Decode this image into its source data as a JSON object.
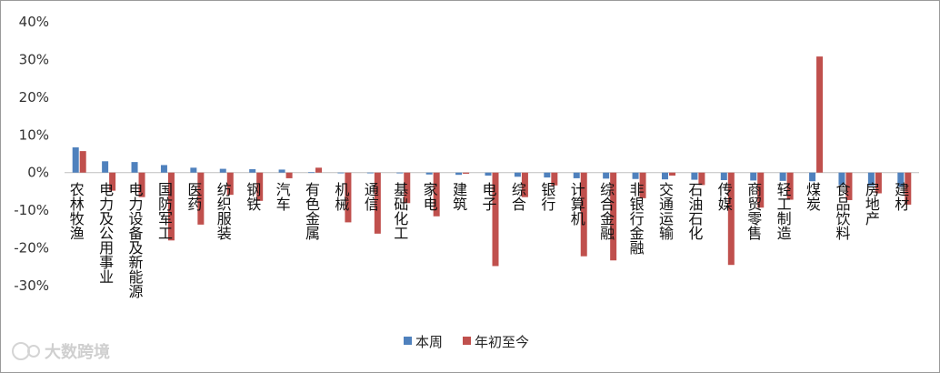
{
  "chart_data": {
    "type": "bar",
    "categories": [
      "农林牧渔",
      "电力及公用事业",
      "电力设备及新能源",
      "国防军工",
      "医药",
      "纺织服装",
      "钢铁",
      "汽车",
      "有色金属",
      "机械",
      "通信",
      "基础化工",
      "家电",
      "建筑",
      "电子",
      "综合",
      "银行",
      "计算机",
      "综合金融",
      "非银行金融",
      "交通运输",
      "石油石化",
      "传媒",
      "商贸零售",
      "轻工制造",
      "煤炭",
      "食品饮料",
      "房地产",
      "建材"
    ],
    "series": [
      {
        "name": "本周",
        "color": "#4f81bd",
        "values": [
          6.7,
          3.0,
          2.8,
          2.0,
          1.3,
          1.0,
          0.9,
          0.8,
          0.1,
          -0.1,
          -0.1,
          -0.2,
          -0.5,
          -0.6,
          -0.8,
          -1.1,
          -1.3,
          -1.5,
          -1.6,
          -1.7,
          -1.8,
          -1.9,
          -2.0,
          -2.1,
          -2.2,
          -2.3,
          -3.3,
          -3.5,
          -3.8
        ]
      },
      {
        "name": "年初至今",
        "color": "#c0504d",
        "values": [
          5.7,
          -4.8,
          -6.5,
          -18.0,
          -13.8,
          -5.9,
          -7.5,
          -1.5,
          1.3,
          -13.2,
          -16.2,
          -8.1,
          -11.6,
          -0.3,
          -24.8,
          -6.5,
          -3.4,
          -22.2,
          -23.3,
          -6.8,
          -0.8,
          -3.3,
          -24.5,
          -9.3,
          -7.2,
          30.8,
          -7.3,
          -5.5,
          -8.5
        ]
      }
    ],
    "yticks": [
      "40%",
      "30%",
      "20%",
      "10%",
      "0%",
      "-10%",
      "-20%",
      "-30%"
    ],
    "ylim": [
      -30,
      40
    ],
    "xlabel": "",
    "ylabel": "",
    "legend_position": "bottom"
  },
  "watermark": "大数跨境"
}
